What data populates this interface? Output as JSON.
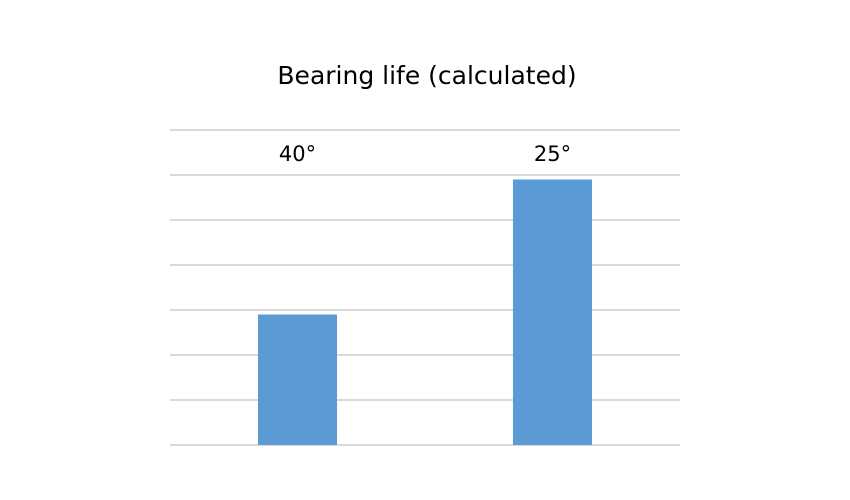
{
  "chart_data": {
    "type": "bar",
    "title": "Bearing life (calculated)",
    "categories": [
      "40°",
      "25°"
    ],
    "values": [
      2.9,
      5.9
    ],
    "ylim": [
      0,
      7
    ],
    "grid": true,
    "xlabel": "",
    "ylabel": "",
    "legend": "none",
    "category_label_position": "top",
    "bar_color": "#5B9BD5",
    "grid_color": "#D9D9D9"
  }
}
